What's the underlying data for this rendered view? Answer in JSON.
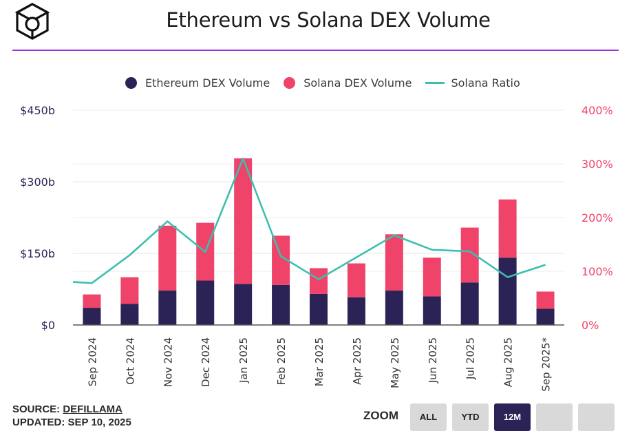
{
  "header": {
    "logo": "cube-logo",
    "title": "Ethereum vs Solana DEX Volume"
  },
  "colors": {
    "accent_rule": "#9d33d6",
    "ethereum": "#2b2356",
    "solana": "#ef4369",
    "ratio": "#3dbfaf",
    "left_axis_text": "#2b2356",
    "right_axis_text": "#ef4369"
  },
  "legend": [
    {
      "label": "Ethereum DEX Volume",
      "kind": "dot",
      "color": "#2b2356"
    },
    {
      "label": "Solana DEX Volume",
      "kind": "dot",
      "color": "#ef4369"
    },
    {
      "label": "Solana Ratio",
      "kind": "line",
      "color": "#3dbfaf"
    }
  ],
  "chart_data": {
    "type": "bar",
    "stacked": true,
    "title": "Ethereum vs Solana DEX Volume",
    "categories": [
      "Sep 2024",
      "Oct 2024",
      "Nov 2024",
      "Dec 2024",
      "Jan 2025",
      "Feb 2025",
      "Mar 2025",
      "Apr 2025",
      "May 2025",
      "Jun 2025",
      "Jul 2025",
      "Aug 2025",
      "Sep 2025*"
    ],
    "series": [
      {
        "name": "Ethereum DEX Volume",
        "axis": "left",
        "values": [
          36,
          44,
          72,
          93,
          86,
          84,
          65,
          58,
          72,
          60,
          89,
          141,
          34
        ]
      },
      {
        "name": "Solana DEX Volume",
        "axis": "left",
        "values": [
          28,
          56,
          136,
          121,
          263,
          103,
          54,
          71,
          118,
          81,
          115,
          122,
          36
        ]
      },
      {
        "name": "Solana Ratio",
        "type": "line",
        "axis": "right",
        "values": [
          78,
          130,
          193,
          136,
          310,
          128,
          85,
          126,
          167,
          140,
          137,
          89,
          112
        ]
      }
    ],
    "left_axis": {
      "ticks": [
        "$0",
        "$150b",
        "$300b",
        "$450b"
      ],
      "range": [
        0,
        450
      ],
      "unit": "$b"
    },
    "right_axis": {
      "ticks": [
        "0%",
        "100%",
        "200%",
        "300%",
        "400%"
      ],
      "range": [
        0,
        400
      ],
      "unit": "%"
    },
    "grid": true,
    "legend_position": "top"
  },
  "footer": {
    "source_prefix": "SOURCE: ",
    "source_link": "DEFILLAMA",
    "updated": "UPDATED: SEP 10, 2025"
  },
  "zoom": {
    "label": "ZOOM",
    "buttons": [
      {
        "label": "ALL",
        "active": false
      },
      {
        "label": "YTD",
        "active": false
      },
      {
        "label": "12M",
        "active": true
      },
      {
        "label": "",
        "active": false
      },
      {
        "label": "",
        "active": false
      }
    ]
  }
}
